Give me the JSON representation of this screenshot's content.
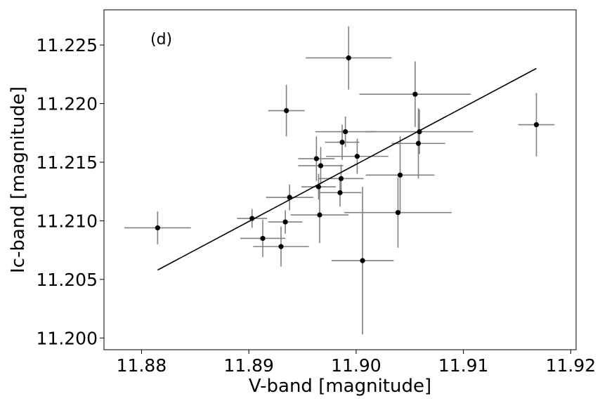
{
  "chart_data": {
    "type": "scatter",
    "panel_label": "(d)",
    "xlabel": "V-band [magnitude]",
    "ylabel": "Ic-band [magnitude]",
    "xlim": [
      11.8765,
      11.9205
    ],
    "ylim": [
      11.199,
      11.228
    ],
    "xticks": [
      {
        "value": 11.88,
        "label": "11.88"
      },
      {
        "value": 11.89,
        "label": "11.89"
      },
      {
        "value": 11.9,
        "label": "11.90"
      },
      {
        "value": 11.91,
        "label": "11.91"
      },
      {
        "value": 11.92,
        "label": "11.92"
      }
    ],
    "yticks": [
      {
        "value": 11.2,
        "label": "11.200"
      },
      {
        "value": 11.205,
        "label": "11.205"
      },
      {
        "value": 11.21,
        "label": "11.210"
      },
      {
        "value": 11.215,
        "label": "11.215"
      },
      {
        "value": 11.22,
        "label": "11.220"
      },
      {
        "value": 11.225,
        "label": "11.225"
      }
    ],
    "grid": false,
    "marker_color": "#000000",
    "errorbar_color": "#808080",
    "points": [
      {
        "x": 11.8815,
        "y": 11.2094,
        "xerr": 0.0031,
        "yerr": 0.0014
      },
      {
        "x": 11.8903,
        "y": 11.2102,
        "xerr": 0.0014,
        "yerr": 0.0008
      },
      {
        "x": 11.8913,
        "y": 11.2085,
        "xerr": 0.0021,
        "yerr": 0.0016
      },
      {
        "x": 11.893,
        "y": 11.2078,
        "xerr": 0.0026,
        "yerr": 0.0017
      },
      {
        "x": 11.8934,
        "y": 11.2099,
        "xerr": 0.0016,
        "yerr": 0.001
      },
      {
        "x": 11.8935,
        "y": 11.2194,
        "xerr": 0.0017,
        "yerr": 0.0022
      },
      {
        "x": 11.8938,
        "y": 11.212,
        "xerr": 0.0022,
        "yerr": 0.0011
      },
      {
        "x": 11.8963,
        "y": 11.2153,
        "xerr": 0.0017,
        "yerr": 0.0019
      },
      {
        "x": 11.8965,
        "y": 11.2129,
        "xerr": 0.0016,
        "yerr": 0.0011
      },
      {
        "x": 11.8966,
        "y": 11.2105,
        "xerr": 0.0027,
        "yerr": 0.0024
      },
      {
        "x": 11.8967,
        "y": 11.2147,
        "xerr": 0.0021,
        "yerr": 0.0016
      },
      {
        "x": 11.8985,
        "y": 11.2124,
        "xerr": 0.002,
        "yerr": 0.0012
      },
      {
        "x": 11.8986,
        "y": 11.2136,
        "xerr": 0.0021,
        "yerr": 0.0012
      },
      {
        "x": 11.8987,
        "y": 11.2167,
        "xerr": 0.0016,
        "yerr": 0.0015
      },
      {
        "x": 11.899,
        "y": 11.2176,
        "xerr": 0.0028,
        "yerr": 0.0013
      },
      {
        "x": 11.8993,
        "y": 11.2239,
        "xerr": 0.004,
        "yerr": 0.0027
      },
      {
        "x": 11.9001,
        "y": 11.2155,
        "xerr": 0.0029,
        "yerr": 0.0015
      },
      {
        "x": 11.9006,
        "y": 11.2066,
        "xerr": 0.0029,
        "yerr": 0.0063
      },
      {
        "x": 11.9039,
        "y": 11.2107,
        "xerr": 0.005,
        "yerr": 0.003
      },
      {
        "x": 11.9041,
        "y": 11.2139,
        "xerr": 0.0032,
        "yerr": 0.0033
      },
      {
        "x": 11.9055,
        "y": 11.2208,
        "xerr": 0.0052,
        "yerr": 0.0028
      },
      {
        "x": 11.9058,
        "y": 11.2166,
        "xerr": 0.0025,
        "yerr": 0.003
      },
      {
        "x": 11.9059,
        "y": 11.2176,
        "xerr": 0.005,
        "yerr": 0.0019
      },
      {
        "x": 11.9168,
        "y": 11.2182,
        "xerr": 0.0017,
        "yerr": 0.0027
      }
    ],
    "fit_line": {
      "x": [
        11.8815,
        11.9168
      ],
      "y": [
        11.2058,
        11.223
      ],
      "color": "#000000"
    }
  }
}
